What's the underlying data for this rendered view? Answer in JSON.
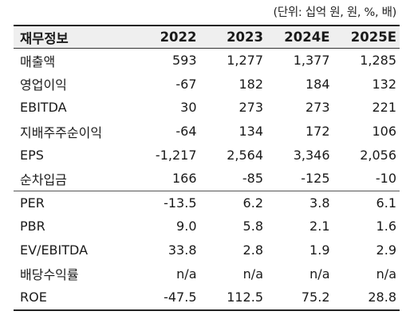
{
  "unit_note": "(단위: 십억 원, 원, %, 배)",
  "header": [
    "재무정보",
    "2022",
    "2023",
    "2024E",
    "2025E"
  ],
  "rows": [
    {
      "label": "매출액",
      "values": [
        "593",
        "1,277",
        "1,377",
        "1,285"
      ]
    },
    {
      "label": "영업이익",
      "values": [
        "-67",
        "182",
        "184",
        "132"
      ]
    },
    {
      "label": "EBITDA",
      "values": [
        "30",
        "273",
        "273",
        "221"
      ]
    },
    {
      "label": "지배주주순이익",
      "values": [
        "-64",
        "134",
        "172",
        "106"
      ]
    },
    {
      "label": "EPS",
      "values": [
        "-1,217",
        "2,564",
        "3,346",
        "2,056"
      ]
    },
    {
      "label": "순차입금",
      "values": [
        "166",
        "-85",
        "-125",
        "-10"
      ]
    },
    {
      "label": "PER",
      "values": [
        "-13.5",
        "6.2",
        "3.8",
        "6.1"
      ]
    },
    {
      "label": "PBR",
      "values": [
        "9.0",
        "5.8",
        "2.1",
        "1.6"
      ]
    },
    {
      "label": "EV/EBITDA",
      "values": [
        "33.8",
        "2.8",
        "1.9",
        "2.9"
      ]
    },
    {
      "label": "배당수익률",
      "values": [
        "n/a",
        "n/a",
        "n/a",
        "n/a"
      ]
    },
    {
      "label": "ROE",
      "values": [
        "-47.5",
        "112.5",
        "75.2",
        "28.8"
      ]
    }
  ]
}
